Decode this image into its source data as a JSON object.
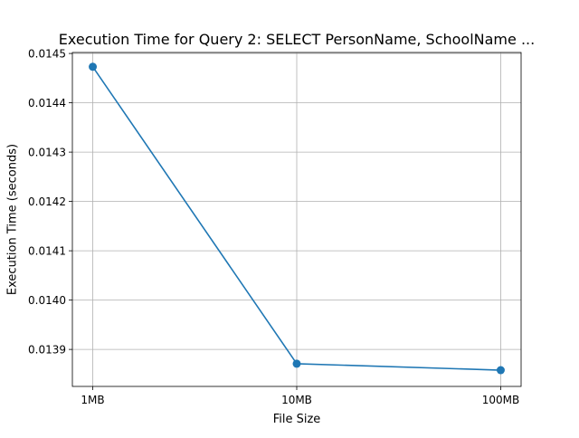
{
  "chart_data": {
    "type": "line",
    "title": "Execution Time for Query 2: SELECT PersonName, SchoolName ...",
    "xlabel": "File Size",
    "ylabel": "Execution Time (seconds)",
    "categories": [
      "1MB",
      "10MB",
      "100MB"
    ],
    "values": [
      0.014473,
      0.013871,
      0.013858
    ],
    "ylim": [
      0.013825,
      0.014502
    ],
    "yticks": [
      0.0139,
      0.014,
      0.0141,
      0.0142,
      0.0143,
      0.0144,
      0.0145
    ],
    "ytick_labels": [
      "0.0139",
      "0.0140",
      "0.0141",
      "0.0142",
      "0.0143",
      "0.0144",
      "0.0145"
    ],
    "grid": true,
    "marker": "circle",
    "line_color": "#1f77b4"
  }
}
